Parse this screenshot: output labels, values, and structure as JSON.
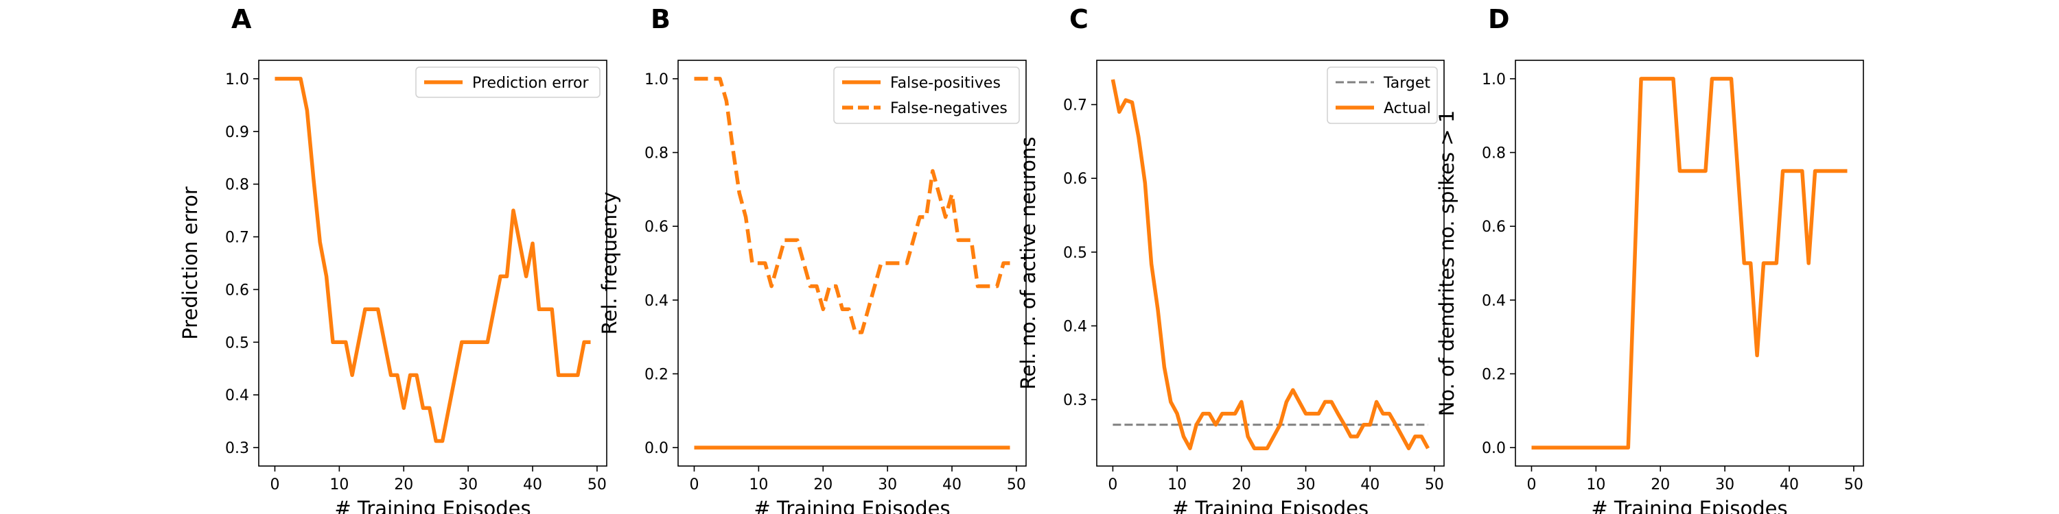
{
  "chart_data": [
    {
      "panel": "A",
      "type": "line",
      "xlabel": "# Training Episodes",
      "ylabel": "Prediction error",
      "xlim": [
        -2.5,
        51.5
      ],
      "ylim": [
        0.265,
        1.035
      ],
      "xticks": [
        0,
        10,
        20,
        30,
        40,
        50
      ],
      "yticks": [
        0.3,
        0.4,
        0.5,
        0.6,
        0.7,
        0.8,
        0.9,
        1.0
      ],
      "ytick_labels": [
        "0.3",
        "0.4",
        "0.5",
        "0.6",
        "0.7",
        "0.8",
        "0.9",
        "1.0"
      ],
      "legend_position": "top-right",
      "x": [
        0,
        1,
        2,
        3,
        4,
        5,
        6,
        7,
        8,
        9,
        10,
        11,
        12,
        13,
        14,
        15,
        16,
        17,
        18,
        19,
        20,
        21,
        22,
        23,
        24,
        25,
        26,
        27,
        28,
        29,
        30,
        31,
        32,
        33,
        34,
        35,
        36,
        37,
        38,
        39,
        40,
        41,
        42,
        43,
        44,
        45,
        46,
        47,
        48,
        49
      ],
      "series": [
        {
          "name": "Prediction error",
          "color": "#ff7f0e",
          "style": "solid",
          "values": [
            1.0,
            1.0,
            1.0,
            1.0,
            1.0,
            0.94,
            0.81,
            0.69,
            0.625,
            0.5,
            0.5,
            0.5,
            0.4375,
            0.5,
            0.5625,
            0.5625,
            0.5625,
            0.5,
            0.4375,
            0.4375,
            0.375,
            0.4375,
            0.4375,
            0.375,
            0.375,
            0.3125,
            0.3125,
            0.375,
            0.4375,
            0.5,
            0.5,
            0.5,
            0.5,
            0.5,
            0.5625,
            0.625,
            0.625,
            0.75,
            0.6875,
            0.625,
            0.6875,
            0.5625,
            0.5625,
            0.5625,
            0.4375,
            0.4375,
            0.4375,
            0.4375,
            0.5,
            0.5
          ]
        }
      ]
    },
    {
      "panel": "B",
      "type": "line",
      "xlabel": "# Training Episodes",
      "ylabel": "Rel. frequency",
      "xlim": [
        -2.5,
        51.5
      ],
      "ylim": [
        -0.05,
        1.05
      ],
      "xticks": [
        0,
        10,
        20,
        30,
        40,
        50
      ],
      "yticks": [
        0.0,
        0.2,
        0.4,
        0.6,
        0.8,
        1.0
      ],
      "ytick_labels": [
        "0.0",
        "0.2",
        "0.4",
        "0.6",
        "0.8",
        "1.0"
      ],
      "legend_position": "top-right",
      "x": [
        0,
        1,
        2,
        3,
        4,
        5,
        6,
        7,
        8,
        9,
        10,
        11,
        12,
        13,
        14,
        15,
        16,
        17,
        18,
        19,
        20,
        21,
        22,
        23,
        24,
        25,
        26,
        27,
        28,
        29,
        30,
        31,
        32,
        33,
        34,
        35,
        36,
        37,
        38,
        39,
        40,
        41,
        42,
        43,
        44,
        45,
        46,
        47,
        48,
        49
      ],
      "series": [
        {
          "name": "False-positives",
          "color": "#ff7f0e",
          "style": "solid",
          "values": [
            0,
            0,
            0,
            0,
            0,
            0,
            0,
            0,
            0,
            0,
            0,
            0,
            0,
            0,
            0,
            0,
            0,
            0,
            0,
            0,
            0,
            0,
            0,
            0,
            0,
            0,
            0,
            0,
            0,
            0,
            0,
            0,
            0,
            0,
            0,
            0,
            0,
            0,
            0,
            0,
            0,
            0,
            0,
            0,
            0,
            0,
            0,
            0,
            0,
            0
          ]
        },
        {
          "name": "False-negatives",
          "color": "#ff7f0e",
          "style": "dashed",
          "values": [
            1.0,
            1.0,
            1.0,
            1.0,
            1.0,
            0.94,
            0.81,
            0.69,
            0.625,
            0.5,
            0.5,
            0.5,
            0.4375,
            0.5,
            0.5625,
            0.5625,
            0.5625,
            0.5,
            0.4375,
            0.4375,
            0.375,
            0.4375,
            0.4375,
            0.375,
            0.375,
            0.3125,
            0.3125,
            0.375,
            0.4375,
            0.5,
            0.5,
            0.5,
            0.5,
            0.5,
            0.5625,
            0.625,
            0.625,
            0.75,
            0.6875,
            0.625,
            0.6875,
            0.5625,
            0.5625,
            0.5625,
            0.4375,
            0.4375,
            0.4375,
            0.4375,
            0.5,
            0.5
          ]
        }
      ]
    },
    {
      "panel": "C",
      "type": "line",
      "xlabel": "# Training Episodes",
      "ylabel": "Rel. no. of active neurons",
      "xlim": [
        -2.5,
        51.5
      ],
      "ylim": [
        0.21,
        0.76
      ],
      "xticks": [
        0,
        10,
        20,
        30,
        40,
        50
      ],
      "yticks": [
        0.3,
        0.4,
        0.5,
        0.6,
        0.7
      ],
      "ytick_labels": [
        "0.3",
        "0.4",
        "0.5",
        "0.6",
        "0.7"
      ],
      "legend_position": "top-right",
      "x": [
        0,
        1,
        2,
        3,
        4,
        5,
        6,
        7,
        8,
        9,
        10,
        11,
        12,
        13,
        14,
        15,
        16,
        17,
        18,
        19,
        20,
        21,
        22,
        23,
        24,
        25,
        26,
        27,
        28,
        29,
        30,
        31,
        32,
        33,
        34,
        35,
        36,
        37,
        38,
        39,
        40,
        41,
        42,
        43,
        44,
        45,
        46,
        47,
        48,
        49
      ],
      "series": [
        {
          "name": "Target",
          "color": "#808080",
          "style": "dashed",
          "x": [
            0,
            49
          ],
          "values": [
            0.266,
            0.266
          ]
        },
        {
          "name": "Actual",
          "color": "#ff7f0e",
          "style": "solid",
          "values": [
            0.734,
            0.69,
            0.706,
            0.703,
            0.656,
            0.594,
            0.484,
            0.422,
            0.344,
            0.297,
            0.281,
            0.25,
            0.234,
            0.266,
            0.281,
            0.281,
            0.266,
            0.281,
            0.281,
            0.281,
            0.297,
            0.25,
            0.234,
            0.234,
            0.234,
            0.25,
            0.266,
            0.297,
            0.313,
            0.297,
            0.281,
            0.281,
            0.281,
            0.297,
            0.297,
            0.281,
            0.266,
            0.25,
            0.25,
            0.266,
            0.266,
            0.297,
            0.281,
            0.281,
            0.266,
            0.25,
            0.234,
            0.25,
            0.25,
            0.234
          ]
        }
      ]
    },
    {
      "panel": "D",
      "type": "line",
      "xlabel": "# Training Episodes",
      "ylabel": "No. of dendrites no. spikes > 1",
      "xlim": [
        -2.5,
        51.5
      ],
      "ylim": [
        -0.05,
        1.05
      ],
      "xticks": [
        0,
        10,
        20,
        30,
        40,
        50
      ],
      "yticks": [
        0.0,
        0.2,
        0.4,
        0.6,
        0.8,
        1.0
      ],
      "ytick_labels": [
        "0.0",
        "0.2",
        "0.4",
        "0.6",
        "0.8",
        "1.0"
      ],
      "legend_position": "none",
      "x": [
        0,
        1,
        2,
        3,
        4,
        5,
        6,
        7,
        8,
        9,
        10,
        11,
        12,
        13,
        14,
        15,
        16,
        17,
        18,
        19,
        20,
        21,
        22,
        23,
        24,
        25,
        26,
        27,
        28,
        29,
        30,
        31,
        32,
        33,
        34,
        35,
        36,
        37,
        38,
        39,
        40,
        41,
        42,
        43,
        44,
        45,
        46,
        47,
        48,
        49
      ],
      "series": [
        {
          "name": "",
          "color": "#ff7f0e",
          "style": "solid",
          "values": [
            0,
            0,
            0,
            0,
            0,
            0,
            0,
            0,
            0,
            0,
            0,
            0,
            0,
            0,
            0,
            0,
            0.5,
            1.0,
            1.0,
            1.0,
            1.0,
            1.0,
            1.0,
            0.75,
            0.75,
            0.75,
            0.75,
            0.75,
            1.0,
            1.0,
            1.0,
            1.0,
            0.75,
            0.5,
            0.5,
            0.25,
            0.5,
            0.5,
            0.5,
            0.75,
            0.75,
            0.75,
            0.75,
            0.5,
            0.75,
            0.75,
            0.75,
            0.75,
            0.75,
            0.75
          ]
        }
      ]
    }
  ]
}
